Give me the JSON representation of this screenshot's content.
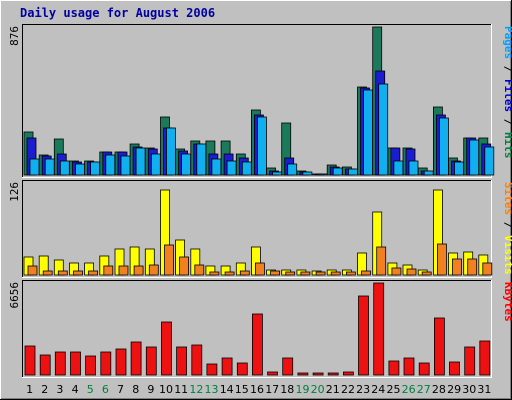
{
  "chart_data": {
    "type": "bar",
    "title": "Daily usage for August 2006",
    "categories": [
      "1",
      "2",
      "3",
      "4",
      "5",
      "6",
      "7",
      "8",
      "9",
      "10",
      "11",
      "12",
      "13",
      "14",
      "15",
      "16",
      "17",
      "18",
      "19",
      "20",
      "21",
      "22",
      "23",
      "24",
      "25",
      "26",
      "27",
      "28",
      "29",
      "30",
      "31"
    ],
    "weekend_days": [
      "5",
      "6",
      "12",
      "13",
      "19",
      "20",
      "26",
      "27"
    ],
    "panels": [
      {
        "id": "top",
        "ymax": 876,
        "ymax_label": "876",
        "right_label": [
          {
            "text": "Pages",
            "color": "#00a0ff"
          },
          {
            "text": " / ",
            "color": "#000000"
          },
          {
            "text": "Files",
            "color": "#0000d0"
          },
          {
            "text": " / ",
            "color": "#000000"
          },
          {
            "text": "Hits",
            "color": "#008040"
          }
        ],
        "series": [
          {
            "name": "Hits",
            "color": "#1c7a5c",
            "values": [
              252,
              117,
              215,
              84,
              84,
              134,
              134,
              185,
              160,
              344,
              151,
              201,
              201,
              201,
              126,
              387,
              42,
              310,
              25,
              8,
              59,
              50,
              521,
              876,
              160,
              160,
              42,
              403,
              101,
              218,
              218
            ]
          },
          {
            "name": "Files",
            "color": "#1c1cd0",
            "values": [
              218,
              113,
              126,
              76,
              76,
              134,
              134,
              168,
              151,
              277,
              143,
              185,
              126,
              126,
              101,
              353,
              25,
              101,
              17,
              8,
              50,
              34,
              513,
              615,
              160,
              151,
              25,
              353,
              84,
              218,
              185
            ]
          },
          {
            "name": "Pages",
            "color": "#10b0f0",
            "values": [
              92,
              92,
              84,
              67,
              76,
              118,
              113,
              160,
              126,
              277,
              126,
              185,
              92,
              84,
              76,
              344,
              17,
              67,
              17,
              8,
              42,
              34,
              504,
              538,
              84,
              84,
              25,
              336,
              76,
              210,
              168
            ]
          }
        ]
      },
      {
        "id": "middle",
        "ymax": 126,
        "ymax_label": "126",
        "right_label": [
          {
            "text": "Sites",
            "color": "#ff8000"
          },
          {
            "text": " / ",
            "color": "#000000"
          },
          {
            "text": "Visits",
            "color": "#ffff00"
          }
        ],
        "series": [
          {
            "name": "Visits",
            "color": "#ffff00",
            "values": [
              24,
              26,
              20,
              17,
              17,
              26,
              36,
              38,
              36,
              116,
              48,
              36,
              12,
              12,
              17,
              38,
              7,
              7,
              7,
              5,
              7,
              7,
              30,
              86,
              17,
              14,
              7,
              116,
              30,
              32,
              28
            ]
          },
          {
            "name": "Sites",
            "color": "#f08020",
            "values": [
              12,
              5,
              5,
              5,
              5,
              12,
              12,
              12,
              14,
              41,
              24,
              14,
              4,
              4,
              5,
              16,
              5,
              4,
              4,
              4,
              4,
              4,
              6,
              39,
              10,
              8,
              4,
              42,
              22,
              22,
              16
            ]
          }
        ]
      },
      {
        "id": "bottom",
        "ymax": 6656,
        "ymax_label": "6656",
        "right_label": [
          {
            "text": "KBytes",
            "color": "#ff0000"
          }
        ],
        "series": [
          {
            "name": "KBytes",
            "color": "#ee1111",
            "values": [
              2100,
              1450,
              1700,
              1650,
              1400,
              1650,
              1900,
              2400,
              2050,
              3850,
              2000,
              2150,
              800,
              1250,
              900,
              4400,
              250,
              1200,
              150,
              150,
              150,
              250,
              5700,
              6656,
              1000,
              1200,
              900,
              4100,
              950,
              2000,
              2450
            ]
          }
        ]
      }
    ]
  }
}
